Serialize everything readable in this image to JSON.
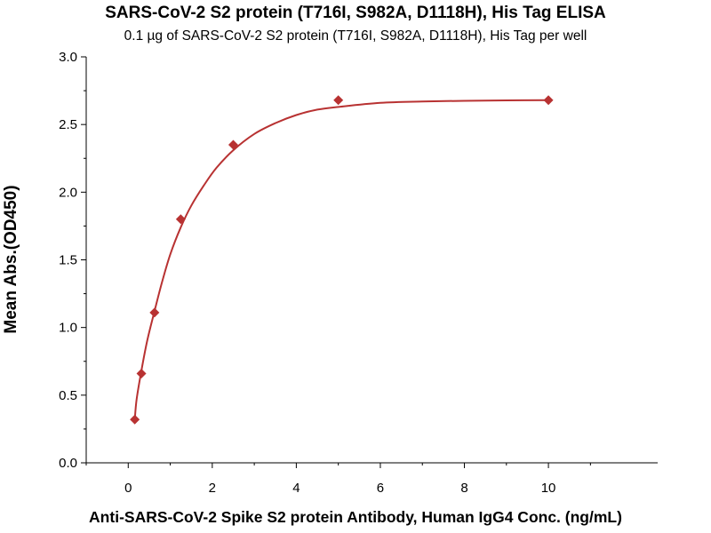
{
  "chart_data": {
    "type": "scatter",
    "title": "SARS-CoV-2 S2 protein (T716I, S982A, D1118H), His Tag ELISA",
    "subtitle": "0.1 µg of SARS-CoV-2 S2 protein (T716I, S982A, D1118H), His Tag per well",
    "xlabel": "Anti-SARS-CoV-2 Spike S2 protein Antibody, Human IgG4 Conc. (ng/mL)",
    "ylabel": "Mean Abs.(OD450)",
    "xlim": [
      -1,
      12.6
    ],
    "ylim": [
      0,
      3.0
    ],
    "x_ticks": [
      0,
      2,
      4,
      6,
      8,
      10
    ],
    "x_tick_labels": [
      "0",
      "2",
      "4",
      "6",
      "8",
      "10"
    ],
    "y_ticks": [
      0,
      0.5,
      1.0,
      1.5,
      2.0,
      2.5,
      3.0
    ],
    "y_tick_labels": [
      "0.0",
      "0.5",
      "1.0",
      "1.5",
      "2.0",
      "2.5",
      "3.0"
    ],
    "grid": false,
    "legend": "none",
    "color": "#b83232",
    "series": [
      {
        "marker": "diamond",
        "x": [
          0.156,
          0.313,
          0.625,
          1.25,
          2.5,
          5,
          10
        ],
        "y": [
          0.32,
          0.66,
          1.11,
          1.8,
          2.35,
          2.68,
          2.68
        ]
      }
    ],
    "fit": {
      "type": "curve",
      "x_range": [
        0.156,
        10
      ],
      "points": [
        [
          0.156,
          0.32
        ],
        [
          0.2,
          0.47
        ],
        [
          0.313,
          0.68
        ],
        [
          0.45,
          0.9
        ],
        [
          0.625,
          1.12
        ],
        [
          0.8,
          1.33
        ],
        [
          1.0,
          1.54
        ],
        [
          1.25,
          1.74
        ],
        [
          1.5,
          1.9
        ],
        [
          1.8,
          2.05
        ],
        [
          2.1,
          2.18
        ],
        [
          2.5,
          2.31
        ],
        [
          3.0,
          2.43
        ],
        [
          3.5,
          2.51
        ],
        [
          4.0,
          2.57
        ],
        [
          4.5,
          2.61
        ],
        [
          5.0,
          2.63
        ],
        [
          6.0,
          2.66
        ],
        [
          7.0,
          2.67
        ],
        [
          8.0,
          2.675
        ],
        [
          9.0,
          2.678
        ],
        [
          10.0,
          2.68
        ]
      ]
    }
  }
}
